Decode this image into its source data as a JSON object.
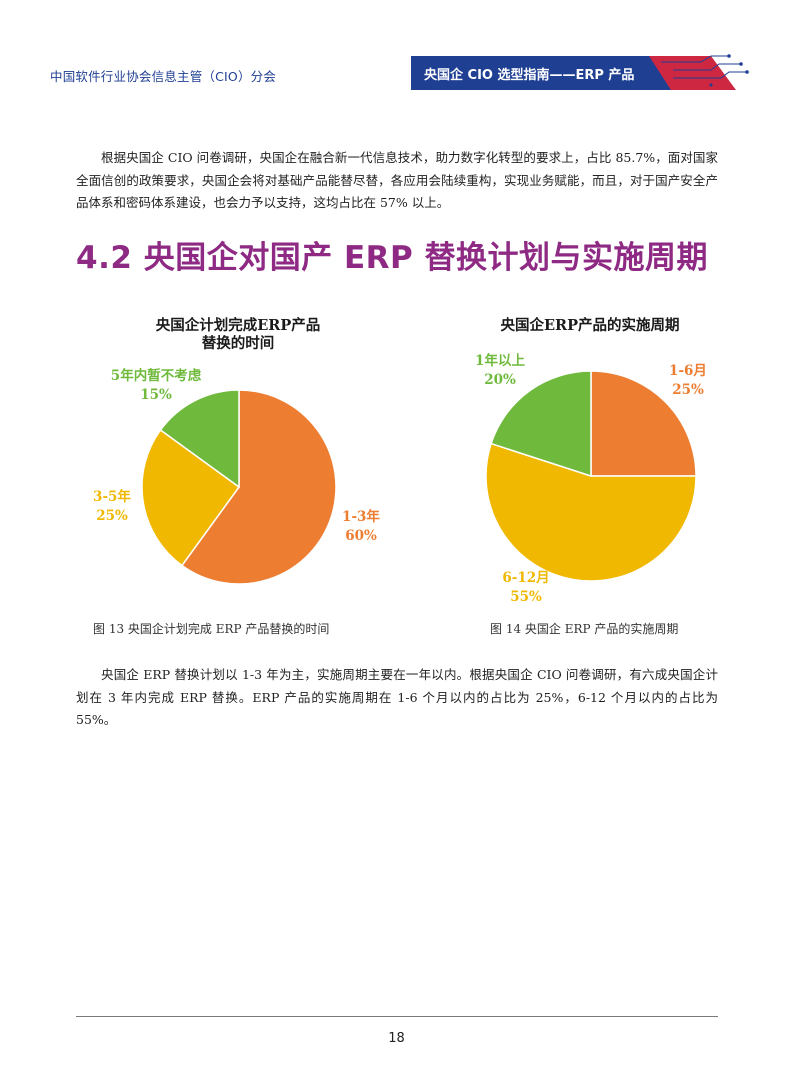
{
  "header": {
    "organization": "中国软件行业协会信息主管（CIO）分会",
    "banner_title": "央国企 CIO 选型指南——ERP 产品",
    "banner_color": "#1f3f93",
    "accent_color": "#c8102e"
  },
  "intro_paragraph": "根据央国企 CIO 问卷调研，央国企在融合新一代信息技术，助力数字化转型的要求上，占比 85.7%，面对国家全面信创的政策要求，央国企会将对基础产品能替尽替，各应用会陆续重构，实现业务赋能，而且，对于国产安全产品体系和密码体系建设，也会力予以支持，这均占比在 57% 以上。",
  "section_title": "4.2 央国企对国产 ERP 替换计划与实施周期",
  "section_title_color": "#8e2a84",
  "chart_data": [
    {
      "type": "pie",
      "title_line1": "央国企计划完成ERP产品",
      "title_line2": "替换的时间",
      "caption": "图 13 央国企计划完成 ERP 产品替换的时间",
      "slices": [
        {
          "name": "1-3年",
          "label": "1-3年",
          "percent_text": "60%",
          "value": 60,
          "color": "#ed7d31"
        },
        {
          "name": "3-5年",
          "label": "3-5年",
          "percent_text": "25%",
          "value": 25,
          "color": "#f0b800"
        },
        {
          "name": "5年内暂不考虑",
          "label": "5年内暂不考虑",
          "percent_text": "15%",
          "value": 15,
          "color": "#6fba3c"
        }
      ]
    },
    {
      "type": "pie",
      "title_line1": "央国企ERP产品的实施周期",
      "caption": "图 14 央国企 ERP 产品的实施周期",
      "slices": [
        {
          "name": "1-6月",
          "label": "1-6月",
          "percent_text": "25%",
          "value": 25,
          "color": "#ed7d31"
        },
        {
          "name": "6-12月",
          "label": "6-12月",
          "percent_text": "55%",
          "value": 55,
          "color": "#f0b800"
        },
        {
          "name": "1年以上",
          "label": "1年以上",
          "percent_text": "20%",
          "value": 20,
          "color": "#6fba3c"
        }
      ]
    }
  ],
  "summary_paragraph": "央国企 ERP 替换计划以 1-3 年为主，实施周期主要在一年以内。根据央国企 CIO 问卷调研，有六成央国企计划在 3 年内完成 ERP 替换。ERP 产品的实施周期在 1-6 个月以内的占比为 25%，6-12 个月以内的占比为 55%。",
  "page_number": "18"
}
